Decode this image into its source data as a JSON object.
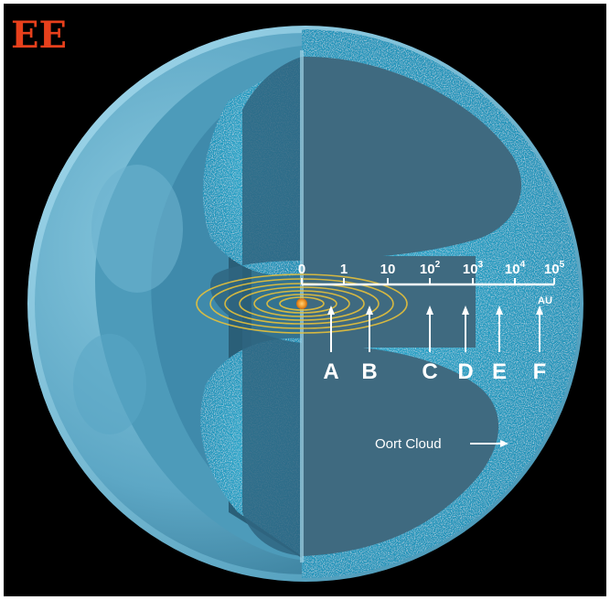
{
  "logo": {
    "text": "EE",
    "color": "#e8401c"
  },
  "scale": {
    "ticks": [
      {
        "base": "0",
        "sup": ""
      },
      {
        "base": "1",
        "sup": ""
      },
      {
        "base": "10",
        "sup": ""
      },
      {
        "base": "10",
        "sup": "2"
      },
      {
        "base": "10",
        "sup": "3"
      },
      {
        "base": "10",
        "sup": "4"
      },
      {
        "base": "10",
        "sup": "5"
      }
    ],
    "unit": "AU"
  },
  "markers": [
    "A",
    "B",
    "C",
    "D",
    "E",
    "F"
  ],
  "oort_label": "Oort Cloud",
  "colors": {
    "background": "#000000",
    "shell_outer": "#6fb4cf",
    "shell_inner": "#3a8fae",
    "cloud_cyan": "#27b6d6",
    "core_slate": "#3f6a80",
    "orbit_gold": "#e7c13a",
    "sun_orange": "#f29a2a",
    "text": "#ffffff"
  }
}
